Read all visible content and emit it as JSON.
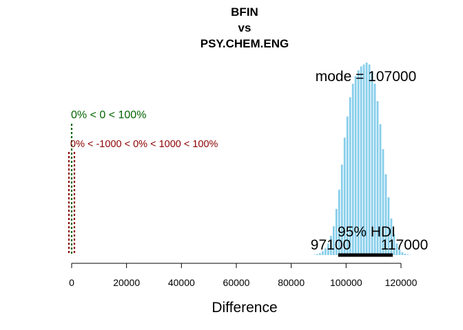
{
  "chart_data": {
    "type": "bar",
    "title_lines": [
      "BFIN",
      "vs",
      "PSY.CHEM.ENG"
    ],
    "xlabel": "Difference",
    "ylabel": "",
    "xlim": [
      -4000,
      126000
    ],
    "xticks": [
      0,
      20000,
      40000,
      60000,
      80000,
      100000,
      120000
    ],
    "xtick_labels": [
      "0",
      "20000",
      "40000",
      "60000",
      "80000",
      "100000",
      "120000"
    ],
    "bar_color": "#87ceeb",
    "bin_width": 1000,
    "bins_start": [
      88000,
      89000,
      90000,
      91000,
      92000,
      93000,
      94000,
      95000,
      96000,
      97000,
      98000,
      99000,
      100000,
      101000,
      102000,
      103000,
      104000,
      105000,
      106000,
      107000,
      108000,
      109000,
      110000,
      111000,
      112000,
      113000,
      114000,
      115000,
      116000,
      117000,
      118000,
      119000,
      120000,
      121000,
      122000,
      123000
    ],
    "values": [
      0.002,
      0.005,
      0.01,
      0.02,
      0.035,
      0.06,
      0.1,
      0.15,
      0.24,
      0.34,
      0.47,
      0.61,
      0.72,
      0.82,
      0.89,
      0.93,
      0.96,
      0.98,
      0.99,
      1.0,
      0.99,
      0.95,
      0.89,
      0.8,
      0.68,
      0.55,
      0.42,
      0.3,
      0.19,
      0.11,
      0.06,
      0.03,
      0.015,
      0.007,
      0.003,
      0.001
    ],
    "mode_label": "mode = 107000",
    "comparison": {
      "value": 0,
      "color": "#006400",
      "text": "0% < 0 < 100%"
    },
    "rope": {
      "low": -1000,
      "high": 1000,
      "color": "#8b0000",
      "text": "0% < -1000 < 0% < 1000 < 100%"
    },
    "hdi": {
      "low": 97100,
      "high": 117000,
      "label": "95% HDI",
      "low_label": "97100",
      "high_label": "117000"
    }
  }
}
